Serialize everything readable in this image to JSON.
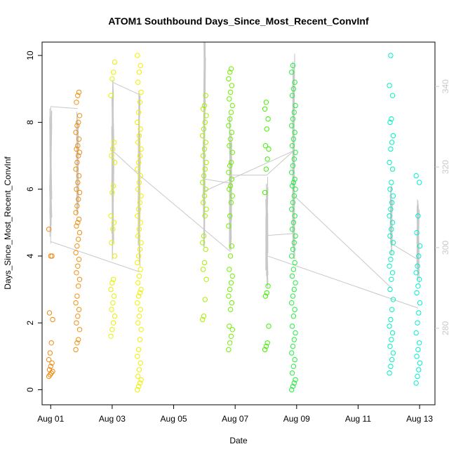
{
  "chart_data": {
    "type": "scatter",
    "title": "ATOM1 Southbound Days_Since_Most_Recent_ConvInf",
    "xlabel": "Date",
    "ylabel": "Days_Since_Most_Recent_ConvInf",
    "x_ticks": [
      "Aug 01",
      "Aug 03",
      "Aug 05",
      "Aug 07",
      "Aug 09",
      "Aug 11",
      "Aug 13"
    ],
    "x_tick_values": [
      1,
      3,
      5,
      7,
      9,
      11,
      13
    ],
    "y_ticks": [
      "0",
      "2",
      "4",
      "6",
      "8",
      "10"
    ],
    "y_tick_values": [
      0,
      2,
      4,
      6,
      8,
      10
    ],
    "y2_ticks": [
      "280",
      "300",
      "320",
      "340"
    ],
    "y2_tick_values": [
      280,
      300,
      320,
      340
    ],
    "xlim": [
      0.72,
      13.5
    ],
    "ylim": [
      -0.45,
      10.4
    ],
    "y2lim": [
      261,
      351
    ],
    "point_color_scale": [
      "#ff8c00",
      "#ffff00",
      "#00ff00",
      "#00ffff"
    ],
    "line_color": "#c8c8c8",
    "axis2_color": "#c8c8c8",
    "points": {
      "groups": [
        {
          "x": 1.0,
          "color": "#f08a10",
          "values": [
            0.4,
            0.45,
            0.5,
            0.55,
            0.6,
            0.7,
            0.8,
            0.9,
            1.1,
            1.4,
            2.1,
            2.3,
            4.0,
            4.0,
            4.8
          ]
        },
        {
          "x": 1.88,
          "color": "#f09010",
          "values": [
            1.2,
            1.4,
            1.5,
            1.8,
            2.0,
            2.2,
            2.4,
            2.6,
            2.8,
            3.1,
            3.3,
            3.5,
            3.7,
            3.9,
            4.1,
            4.3,
            4.5,
            4.7,
            4.9,
            5.0,
            5.1,
            5.3,
            5.5,
            5.7,
            5.9,
            6.0,
            6.2,
            6.4,
            6.6,
            6.8,
            7.0,
            7.1,
            7.2,
            7.3,
            7.5,
            7.7,
            7.9,
            8.0,
            8.2,
            8.6,
            8.8,
            8.9
          ]
        },
        {
          "x": 3.02,
          "color": "#e6f000",
          "values": [
            1.6,
            1.8,
            2.0,
            2.2,
            2.4,
            2.6,
            2.8,
            3.0,
            3.2,
            3.3,
            4.0,
            4.4,
            4.8,
            5.0,
            5.2,
            5.9,
            6.1,
            6.8,
            7.0,
            7.2,
            7.4,
            8.8,
            9.3,
            9.5,
            9.8
          ]
        },
        {
          "x": 3.88,
          "color": "#f0f000",
          "values": [
            0.0,
            0.1,
            0.2,
            0.3,
            0.4,
            0.6,
            0.8,
            1.0,
            1.2,
            1.5,
            1.8,
            2.0,
            2.2,
            2.4,
            2.6,
            2.8,
            2.9,
            3.0,
            3.2,
            3.4,
            3.6,
            3.8,
            4.0,
            4.2,
            4.4,
            4.6,
            4.8,
            5.0,
            5.2,
            5.4,
            5.6,
            5.8,
            6.0,
            6.2,
            6.4,
            6.6,
            6.8,
            7.0,
            7.2,
            7.4,
            7.6,
            7.8,
            8.0,
            8.3,
            8.6,
            8.9,
            9.2,
            9.5,
            9.7,
            10.0
          ]
        },
        {
          "x": 6.0,
          "color": "#a8f000",
          "values": [
            2.1,
            2.2,
            2.7,
            3.3,
            3.6,
            3.8,
            4.2,
            4.4,
            4.6,
            5.2,
            5.4,
            5.6,
            5.8,
            6.0,
            6.2,
            6.4,
            6.6,
            6.8,
            7.0,
            7.2,
            7.4,
            7.6,
            7.8,
            8.0,
            8.2,
            8.4,
            8.5,
            8.8
          ]
        },
        {
          "x": 6.85,
          "color": "#70f000",
          "values": [
            1.2,
            1.4,
            1.6,
            1.8,
            1.9,
            2.4,
            2.6,
            2.8,
            3.0,
            3.2,
            3.4,
            3.6,
            4.0,
            4.3,
            4.9,
            5.2,
            5.6,
            5.8,
            6.0,
            6.1,
            6.3,
            6.5,
            6.7,
            6.8,
            7.1,
            7.3,
            7.5,
            7.7,
            7.9,
            8.1,
            8.3,
            8.5,
            8.7,
            8.9,
            9.1,
            9.3,
            9.5,
            9.6
          ]
        },
        {
          "x": 8.03,
          "color": "#40f000",
          "values": [
            1.2,
            1.3,
            1.4,
            1.9,
            2.8,
            2.9,
            3.1,
            5.9,
            6.6,
            6.9,
            7.2,
            7.3,
            7.8,
            8.1,
            8.4,
            8.6
          ]
        },
        {
          "x": 8.9,
          "color": "#20f040",
          "values": [
            0.0,
            0.1,
            0.2,
            0.3,
            0.5,
            0.7,
            0.9,
            1.1,
            1.3,
            1.5,
            1.7,
            1.9,
            2.2,
            2.4,
            2.6,
            2.8,
            3.0,
            3.2,
            3.4,
            3.6,
            3.8,
            4.0,
            4.2,
            4.4,
            4.6,
            4.8,
            5.0,
            5.2,
            5.4,
            5.6,
            5.8,
            6.0,
            6.1,
            6.2,
            6.3,
            6.5,
            6.7,
            6.9,
            7.1,
            7.3,
            7.5,
            7.7,
            7.9,
            8.1,
            8.3,
            8.5,
            8.8,
            9.0,
            9.2,
            9.5,
            9.7
          ]
        },
        {
          "x": 12.08,
          "color": "#00f0c0",
          "values": [
            0.5,
            0.7,
            0.9,
            1.1,
            1.3,
            1.5,
            1.7,
            1.9,
            2.1,
            2.4,
            2.7,
            3.0,
            3.3,
            3.5,
            3.7,
            3.9,
            4.1,
            4.4,
            4.6,
            4.8,
            5.0,
            5.2,
            5.4,
            5.6,
            5.8,
            6.0,
            6.2,
            6.6,
            6.8,
            7.2,
            7.4,
            7.6,
            8.0,
            8.1,
            8.8,
            9.1,
            10.0
          ]
        },
        {
          "x": 12.95,
          "color": "#00f0d0",
          "values": [
            0.2,
            0.4,
            0.6,
            0.8,
            1.0,
            1.2,
            1.4,
            1.7,
            2.0,
            2.3,
            2.6,
            2.9,
            3.1,
            3.3,
            3.5,
            3.7,
            4.0,
            4.3,
            4.7,
            5.2,
            6.2,
            6.4
          ]
        }
      ]
    },
    "line_series": {
      "y_axis": "right",
      "jitter_ranges": [
        {
          "x": 1.0,
          "y2_min": 301,
          "y2_max": 335
        },
        {
          "x": 1.88,
          "y2_min": 308,
          "y2_max": 334
        },
        {
          "x": 3.02,
          "y2_min": 296,
          "y2_max": 342
        },
        {
          "x": 3.88,
          "y2_min": 294,
          "y2_max": 340
        },
        {
          "x": 6.0,
          "y2_min": 300,
          "y2_max": 354
        },
        {
          "x": 6.85,
          "y2_min": 299,
          "y2_max": 333
        },
        {
          "x": 8.03,
          "y2_min": 290,
          "y2_max": 318
        },
        {
          "x": 8.9,
          "y2_min": 297,
          "y2_max": 349
        },
        {
          "x": 12.08,
          "y2_min": 298,
          "y2_max": 316
        },
        {
          "x": 12.95,
          "y2_min": 291,
          "y2_max": 312
        }
      ],
      "connectors": [
        [
          [
            1.0,
            301
          ],
          [
            1.0,
            335
          ],
          [
            1.88,
            334.5
          ]
        ],
        [
          [
            1.0,
            301.5
          ],
          [
            3.88,
            294
          ]
        ],
        [
          [
            3.02,
            341
          ],
          [
            3.88,
            338
          ]
        ],
        [
          [
            3.02,
            324
          ],
          [
            3.88,
            318
          ]
        ],
        [
          [
            3.88,
            318
          ],
          [
            6.85,
            299
          ]
        ],
        [
          [
            6.0,
            317
          ],
          [
            6.85,
            316
          ]
        ],
        [
          [
            6.0,
            314
          ],
          [
            8.9,
            324
          ]
        ],
        [
          [
            6.85,
            318
          ],
          [
            8.03,
            318
          ],
          [
            8.9,
            324
          ]
        ],
        [
          [
            8.03,
            303
          ],
          [
            8.9,
            303.5
          ]
        ],
        [
          [
            8.03,
            298
          ],
          [
            12.95,
            285
          ]
        ],
        [
          [
            8.9,
            313
          ],
          [
            12.08,
            290
          ]
        ],
        [
          [
            12.08,
            301
          ],
          [
            12.95,
            297
          ]
        ]
      ]
    }
  }
}
